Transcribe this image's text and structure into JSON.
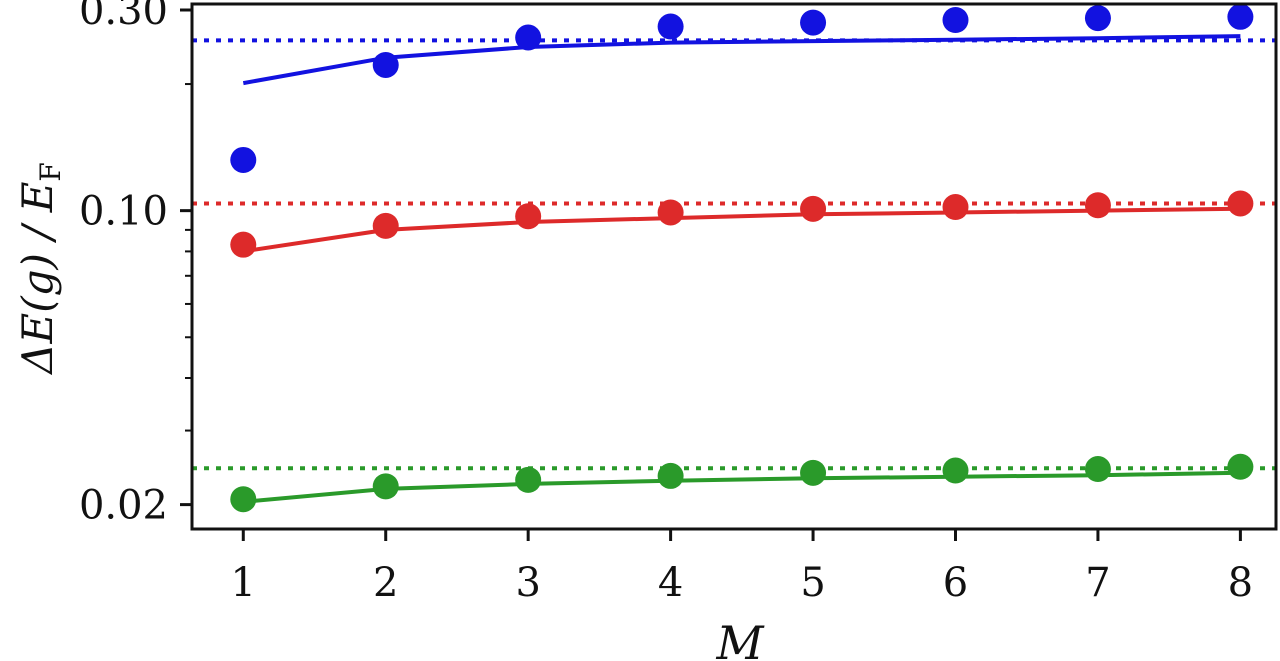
{
  "chart_data": {
    "type": "line",
    "title": "",
    "xlabel": "M",
    "ylabel": {
      "parts": [
        "ΔE(g) / E",
        "F"
      ]
    },
    "x": [
      1,
      2,
      3,
      4,
      5,
      6,
      7,
      8
    ],
    "xticks": [
      "1",
      "2",
      "3",
      "4",
      "5",
      "6",
      "7",
      "8"
    ],
    "xlim": [
      0.64,
      8.25
    ],
    "ylim": [
      0.0175,
      0.31
    ],
    "yscale": "log",
    "yticks": [
      {
        "value": 0.02,
        "label": "0.02"
      },
      {
        "value": 0.1,
        "label": "0.10"
      },
      {
        "value": 0.3,
        "label": "0.30"
      }
    ],
    "yminor": [
      0.03,
      0.04,
      0.05,
      0.06,
      0.07,
      0.08,
      0.09,
      0.2
    ],
    "grid": false,
    "legend": "none",
    "series": [
      {
        "color": "#1212e0",
        "points": [
          0.132,
          0.222,
          0.258,
          0.274,
          0.28,
          0.284,
          0.287,
          0.289
        ],
        "fit": [
          0.201,
          0.231,
          0.245,
          0.251,
          0.253,
          0.255,
          0.257,
          0.26
        ],
        "limit": 0.254
      },
      {
        "color": "#dd2a2a",
        "points": [
          0.083,
          0.092,
          0.097,
          0.099,
          0.101,
          0.102,
          0.103,
          0.104
        ],
        "fit": [
          0.08,
          0.09,
          0.094,
          0.096,
          0.098,
          0.099,
          0.1,
          0.101
        ],
        "limit": 0.104
      },
      {
        "color": "#2a9a2a",
        "points": [
          0.0206,
          0.0221,
          0.0229,
          0.0234,
          0.0238,
          0.0241,
          0.0243,
          0.0246
        ],
        "fit": [
          0.0203,
          0.0218,
          0.0224,
          0.0228,
          0.0231,
          0.0233,
          0.0235,
          0.0238
        ],
        "limit": 0.0244
      }
    ]
  }
}
